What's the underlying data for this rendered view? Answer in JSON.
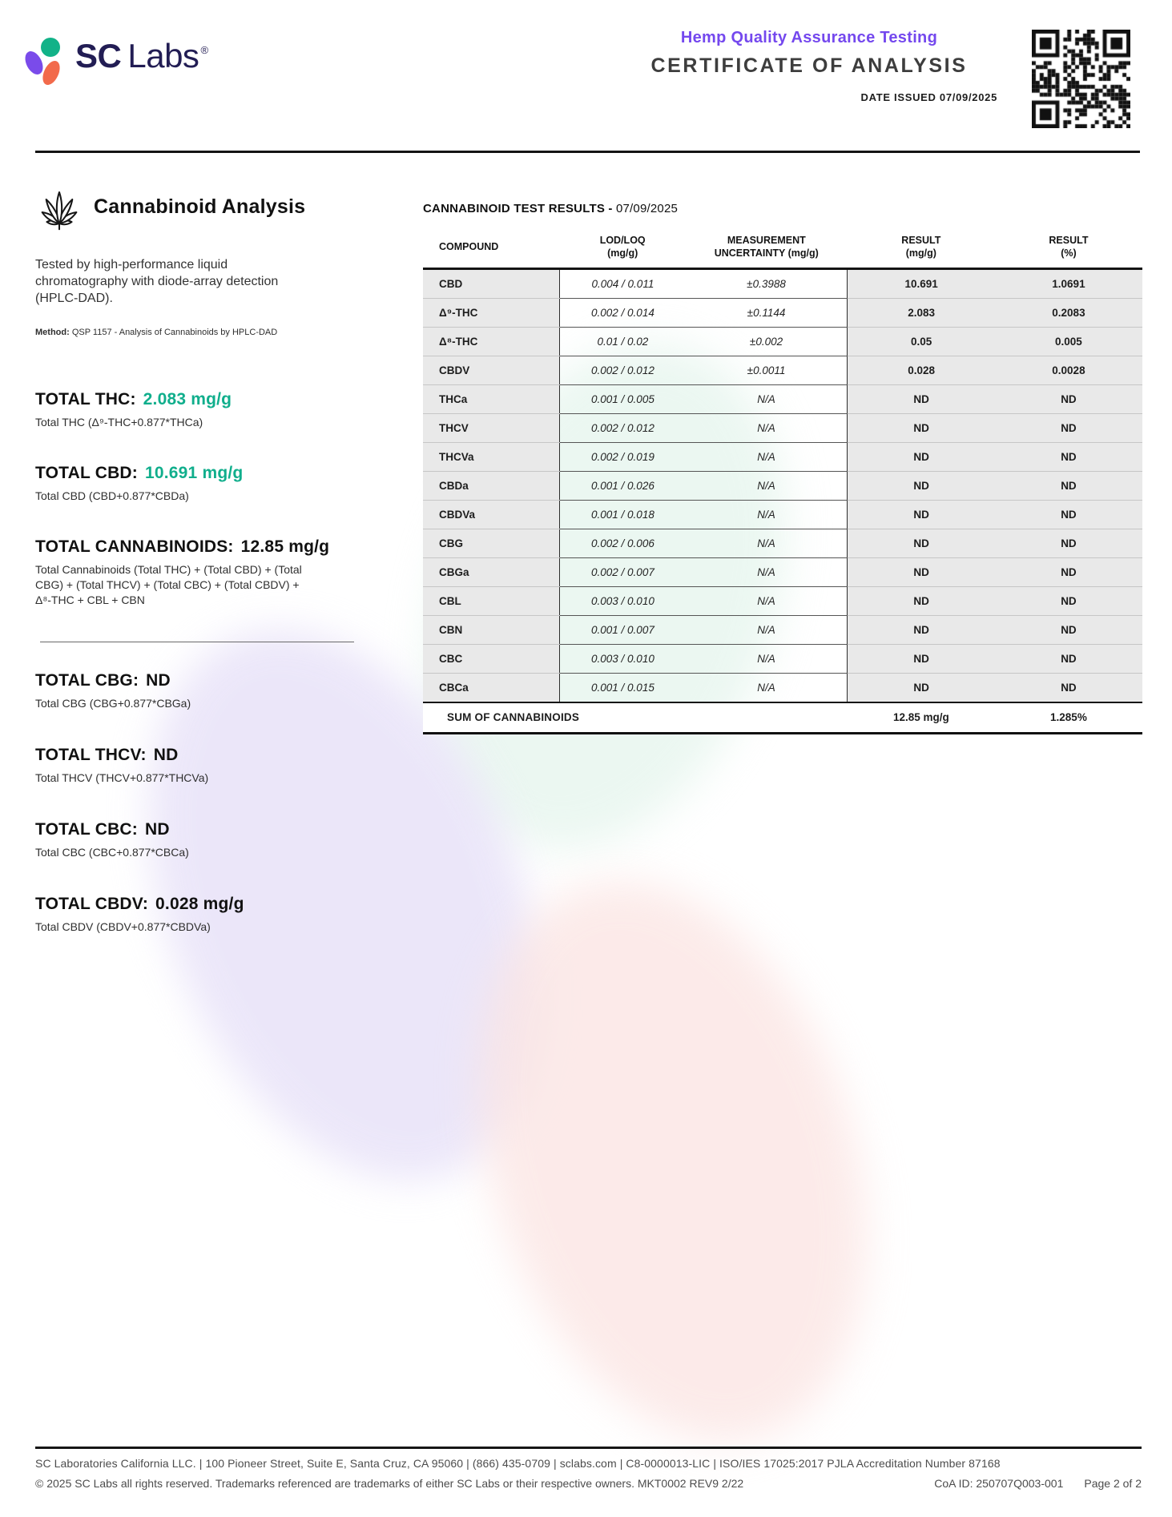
{
  "colors": {
    "teal": "#10AE8C",
    "purple": "#7448EE",
    "navy": "#221D54",
    "petal_purple": "#7A4BEA",
    "petal_green": "#12B288",
    "petal_orange": "#F26A4B"
  },
  "header": {
    "logo_sc": "SC",
    "logo_labs": "Labs",
    "logo_reg": "®",
    "program": "Hemp Quality Assurance Testing",
    "title": "CERTIFICATE OF ANALYSIS",
    "date_issued": "DATE ISSUED 07/09/2025"
  },
  "analysis": {
    "heading": "Cannabinoid Analysis",
    "description": "Tested by high-performance liquid chromatography with diode-array detection (HPLC-DAD).",
    "method_label": "Method:",
    "method_text": " QSP 1157 - Analysis of Cannabinoids by HPLC-DAD"
  },
  "totals_primary": [
    {
      "label": "TOTAL THC:",
      "value": "2.083 mg/g",
      "highlight": true,
      "formula": "Total THC (Δ⁹-THC+0.877*THCa)"
    },
    {
      "label": "TOTAL CBD:",
      "value": "10.691 mg/g",
      "highlight": true,
      "formula": "Total CBD (CBD+0.877*CBDa)"
    },
    {
      "label": "TOTAL CANNABINOIDS:",
      "value": "12.85 mg/g",
      "highlight": false,
      "formula": "Total Cannabinoids (Total THC) + (Total CBD) + (Total CBG) + (Total THCV) + (Total CBC) + (Total CBDV) + Δ⁸-THC + CBL + CBN"
    }
  ],
  "totals_secondary": [
    {
      "label": "TOTAL CBG:",
      "value": "ND",
      "highlight": false,
      "formula": "Total CBG (CBG+0.877*CBGa)"
    },
    {
      "label": "TOTAL THCV:",
      "value": "ND",
      "highlight": false,
      "formula": "Total THCV (THCV+0.877*THCVa)"
    },
    {
      "label": "TOTAL CBC:",
      "value": "ND",
      "highlight": false,
      "formula": "Total CBC (CBC+0.877*CBCa)"
    },
    {
      "label": "TOTAL CBDV:",
      "value": "0.028 mg/g",
      "highlight": false,
      "formula": "Total CBDV (CBDV+0.877*CBDVa)"
    }
  ],
  "results": {
    "title_bold": "CANNABINOID TEST RESULTS -",
    "title_date": " 07/09/2025",
    "columns": [
      {
        "l1": "COMPOUND",
        "l2": ""
      },
      {
        "l1": "LOD/LOQ",
        "l2": "(mg/g)"
      },
      {
        "l1": "MEASUREMENT",
        "l2": "UNCERTAINTY (mg/g)"
      },
      {
        "l1": "RESULT",
        "l2": "(mg/g)"
      },
      {
        "l1": "RESULT",
        "l2": "(%)"
      }
    ],
    "rows": [
      {
        "compound": "CBD",
        "lod_loq": "0.004 / 0.011",
        "uncertainty": "±0.3988",
        "result_mg": "10.691",
        "result_pct": "1.0691"
      },
      {
        "compound": "Δ⁹-THC",
        "lod_loq": "0.002 / 0.014",
        "uncertainty": "±0.1144",
        "result_mg": "2.083",
        "result_pct": "0.2083"
      },
      {
        "compound": "Δ⁸-THC",
        "lod_loq": "0.01 / 0.02",
        "uncertainty": "±0.002",
        "result_mg": "0.05",
        "result_pct": "0.005"
      },
      {
        "compound": "CBDV",
        "lod_loq": "0.002 / 0.012",
        "uncertainty": "±0.0011",
        "result_mg": "0.028",
        "result_pct": "0.0028"
      },
      {
        "compound": "THCa",
        "lod_loq": "0.001 / 0.005",
        "uncertainty": "N/A",
        "result_mg": "ND",
        "result_pct": "ND"
      },
      {
        "compound": "THCV",
        "lod_loq": "0.002 / 0.012",
        "uncertainty": "N/A",
        "result_mg": "ND",
        "result_pct": "ND"
      },
      {
        "compound": "THCVa",
        "lod_loq": "0.002 / 0.019",
        "uncertainty": "N/A",
        "result_mg": "ND",
        "result_pct": "ND"
      },
      {
        "compound": "CBDa",
        "lod_loq": "0.001 / 0.026",
        "uncertainty": "N/A",
        "result_mg": "ND",
        "result_pct": "ND"
      },
      {
        "compound": "CBDVa",
        "lod_loq": "0.001 / 0.018",
        "uncertainty": "N/A",
        "result_mg": "ND",
        "result_pct": "ND"
      },
      {
        "compound": "CBG",
        "lod_loq": "0.002 / 0.006",
        "uncertainty": "N/A",
        "result_mg": "ND",
        "result_pct": "ND"
      },
      {
        "compound": "CBGa",
        "lod_loq": "0.002 / 0.007",
        "uncertainty": "N/A",
        "result_mg": "ND",
        "result_pct": "ND"
      },
      {
        "compound": "CBL",
        "lod_loq": "0.003 / 0.010",
        "uncertainty": "N/A",
        "result_mg": "ND",
        "result_pct": "ND"
      },
      {
        "compound": "CBN",
        "lod_loq": "0.001 / 0.007",
        "uncertainty": "N/A",
        "result_mg": "ND",
        "result_pct": "ND"
      },
      {
        "compound": "CBC",
        "lod_loq": "0.003 / 0.010",
        "uncertainty": "N/A",
        "result_mg": "ND",
        "result_pct": "ND"
      },
      {
        "compound": "CBCa",
        "lod_loq": "0.001 / 0.015",
        "uncertainty": "N/A",
        "result_mg": "ND",
        "result_pct": "ND"
      }
    ],
    "summary": {
      "label": "SUM OF CANNABINOIDS",
      "result_mg": "12.85 mg/g",
      "result_pct": "1.285%"
    }
  },
  "footer": {
    "line1": "SC Laboratories California LLC. | 100 Pioneer Street, Suite E, Santa Cruz, CA 95060 | (866) 435-0709 | sclabs.com | C8-0000013-LIC | ISO/IES 17025:2017 PJLA Accreditation Number 87168",
    "line2_left": "© 2025 SC Labs all rights reserved. Trademarks referenced are trademarks of either SC Labs or their respective owners. MKT0002 REV9 2/22",
    "coa_id": "CoA ID: 250707Q003-001",
    "page": "Page 2 of 2"
  }
}
